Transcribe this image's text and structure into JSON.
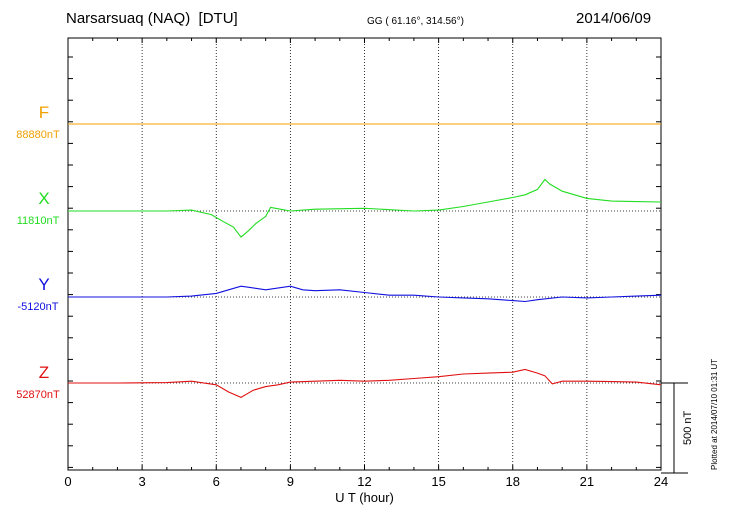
{
  "header": {
    "station": "Narsarsuaq (NAQ)  [DTU]",
    "coords": "GG ( 61.16°, 314.56°)",
    "date": "2014/06/09"
  },
  "scale_label": "500 nT",
  "plotted_note": "Plotted at 2014/07/10 01:31  UT",
  "chart_data": {
    "type": "line",
    "xlabel": "U T (hour)",
    "xlim": [
      0,
      24
    ],
    "xticks": [
      "0",
      "3",
      "6",
      "9",
      "12",
      "15",
      "18",
      "21",
      "24"
    ],
    "scale_bar_nT": 500,
    "series": [
      {
        "name": "F",
        "baseline_label": "88880nT",
        "baseline": 88880,
        "color": "#f0a000",
        "x": [
          0,
          4,
          8,
          12,
          16,
          20,
          24
        ],
        "y": [
          88880,
          88880,
          88880,
          88880,
          88880,
          88880,
          88880
        ]
      },
      {
        "name": "X",
        "baseline_label": "11810nT",
        "baseline": 11810,
        "color": "#22dd22",
        "x": [
          0,
          2,
          4,
          5,
          5.8,
          6.3,
          6.7,
          7,
          7.3,
          7.6,
          8,
          8.2,
          9,
          10,
          12,
          14,
          15,
          16,
          17,
          18,
          18.5,
          19,
          19.3,
          19.5,
          20,
          21,
          22,
          24
        ],
        "y": [
          11810,
          11810,
          11810,
          11815,
          11790,
          11750,
          11720,
          11665,
          11700,
          11740,
          11780,
          11830,
          11810,
          11820,
          11825,
          11810,
          11815,
          11835,
          11860,
          11885,
          11900,
          11930,
          11985,
          11960,
          11920,
          11880,
          11865,
          11860
        ]
      },
      {
        "name": "Y",
        "baseline_label": "-5120nT",
        "baseline": -5120,
        "color": "#1010e0",
        "x": [
          0,
          2,
          4,
          5,
          6,
          6.5,
          7,
          8,
          9,
          9.5,
          10,
          11,
          12,
          13,
          14,
          15,
          16,
          17,
          18,
          18.5,
          19,
          20,
          21,
          22,
          23,
          24
        ],
        "y": [
          -5120,
          -5120,
          -5120,
          -5115,
          -5100,
          -5080,
          -5060,
          -5080,
          -5060,
          -5080,
          -5085,
          -5080,
          -5095,
          -5110,
          -5110,
          -5120,
          -5125,
          -5130,
          -5140,
          -5145,
          -5135,
          -5120,
          -5125,
          -5120,
          -5115,
          -5110
        ]
      },
      {
        "name": "Z",
        "baseline_label": "52870nT",
        "baseline": 52870,
        "color": "#e01010",
        "x": [
          0,
          2,
          4,
          5,
          6,
          6.5,
          7,
          7.5,
          8,
          8.5,
          9,
          10,
          11,
          12,
          13,
          14,
          15,
          16,
          17,
          18,
          18.5,
          19,
          19.3,
          19.6,
          20,
          21,
          22,
          23,
          24
        ],
        "y": [
          52870,
          52870,
          52872,
          52880,
          52860,
          52820,
          52790,
          52830,
          52850,
          52860,
          52875,
          52880,
          52885,
          52880,
          52885,
          52895,
          52905,
          52920,
          52925,
          52930,
          52945,
          52925,
          52910,
          52865,
          52880,
          52880,
          52878,
          52875,
          52860
        ]
      }
    ]
  }
}
